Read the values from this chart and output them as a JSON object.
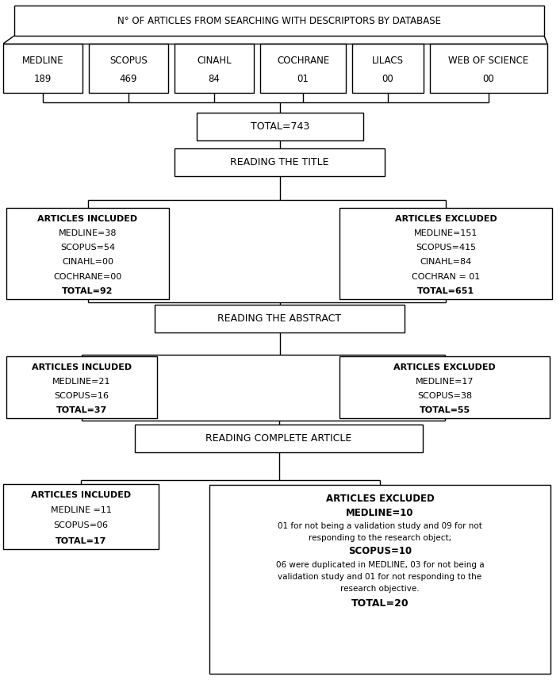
{
  "title": "N° OF ARTICLES FROM SEARCHING WITH DESCRIPTORS BY DATABASE",
  "db_boxes": [
    {
      "label": "MEDLINE\n189"
    },
    {
      "label": "SCOPUS\n469"
    },
    {
      "label": "CINAHL\n84"
    },
    {
      "label": "COCHRANE\n01"
    },
    {
      "label": "LILACS\n00"
    },
    {
      "label": "WEB OF SCIENCE\n00"
    }
  ],
  "total_box": "TOTAL=743",
  "reading_title_box": "READING THE TITLE",
  "included_title": "ARTICLES INCLUDED\nMEDLINE=38\nSCOPUS=54\nCINAHL=00\nCOCHRANE=00\nTOTAL=92",
  "excluded_title": "ARTICLES EXCLUDED\nMEDLINE=151\nSCOPUS=415\nCINAHL=84\nCOCHRAN = 01\nTOTAL=651",
  "reading_abstract_box": "READING THE ABSTRACT",
  "included_abstract": "ARTICLES INCLUDED\nMEDLINE=21\nSCOPUS=16\nTOTAL=37",
  "excluded_abstract": "ARTICLES EXCLUDED\nMEDLINE=17\nSCOPUS=38\nTOTAL=55",
  "reading_complete_box": "READING COMPLETE ARTICLE",
  "included_complete": "ARTICLES INCLUDED\nMEDLINE =11\nSCOPUS=06\nTOTAL=17",
  "excluded_complete_title": "ARTICLES EXCLUDED",
  "excluded_complete_medline_bold": "MEDLINE=10",
  "excluded_complete_text1": "01 for not being a validation study and 09 for not\nresponding to the research object;",
  "excluded_complete_scopus_bold": "SCOPUS=10",
  "excluded_complete_text2": "06 were duplicated in MEDLINE, 03 for not being a\nvalidation study and 01 for not responding to the\nresearch objective.",
  "excluded_complete_total_bold": "TOTAL=20",
  "box_facecolor": "#ffffff",
  "border_color": "#000000",
  "text_color": "#000000",
  "lw": 1.0
}
